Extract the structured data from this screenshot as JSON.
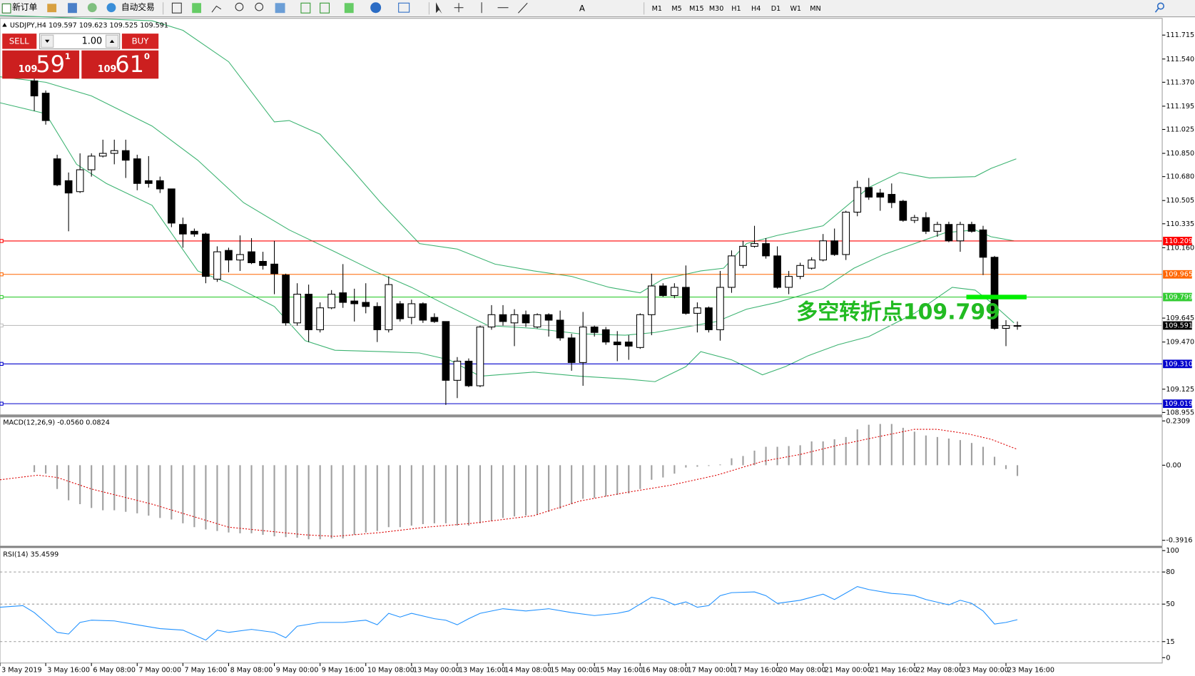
{
  "toolbar": {
    "new_order": "新订单",
    "auto_trading": "自动交易",
    "timeframes": [
      "M1",
      "M5",
      "M15",
      "M30",
      "H1",
      "H4",
      "D1",
      "W1",
      "MN"
    ]
  },
  "trade_panel": {
    "sell": "SELL",
    "lots": "1.00",
    "buy": "BUY",
    "sell_big": "109",
    "sell_pips": "59",
    "sell_frac": "1",
    "buy_big": "109",
    "buy_pips": "61",
    "buy_frac": "0"
  },
  "chart_data": [
    {
      "type": "candlestick",
      "title": "USDJPY,H4  109.597 109.623 109.525 109.591",
      "xlim": [
        -3,
        98.67
      ],
      "ylim": [
        108.938,
        111.832
      ],
      "yticks": [
        111.715,
        {
          "value": 111.54,
          "label": "111.540"
        },
        {
          "value": 111.37,
          "label": "111.370"
        },
        111.195,
        111.025,
        {
          "value": 110.85,
          "label": "110.850"
        },
        {
          "value": 110.68,
          "label": "110.680"
        },
        110.505,
        110.335,
        {
          "value": 110.16,
          "label": "110.160"
        },
        109.645,
        {
          "value": 109.47,
          "label": "109.470"
        },
        109.125,
        108.955
      ],
      "ohlc": [
        [
          111.38,
          111.41,
          111.16,
          111.27
        ],
        [
          111.29,
          111.31,
          111.06,
          111.09
        ],
        [
          110.81,
          110.84,
          110.61,
          110.62
        ],
        [
          110.65,
          110.71,
          110.28,
          110.56
        ],
        [
          110.57,
          110.85,
          110.56,
          110.73
        ],
        [
          110.73,
          110.85,
          110.68,
          110.83
        ],
        [
          110.83,
          110.95,
          110.82,
          110.85
        ],
        [
          110.85,
          110.95,
          110.77,
          110.87
        ],
        [
          110.87,
          110.95,
          110.67,
          110.8
        ],
        [
          110.81,
          110.84,
          110.58,
          110.63
        ],
        [
          110.65,
          110.83,
          110.6,
          110.63
        ],
        [
          110.65,
          110.68,
          110.56,
          110.59
        ],
        [
          110.59,
          110.59,
          110.31,
          110.34
        ],
        [
          110.33,
          110.38,
          110.16,
          110.26
        ],
        [
          110.28,
          110.3,
          110.24,
          110.26
        ],
        [
          110.26,
          110.27,
          109.9,
          109.95
        ],
        [
          109.93,
          110.17,
          109.91,
          110.13
        ],
        [
          110.14,
          110.16,
          109.98,
          110.07
        ],
        [
          110.07,
          110.25,
          109.99,
          110.11
        ],
        [
          110.13,
          110.23,
          110.04,
          110.05
        ],
        [
          110.06,
          110.13,
          110,
          110.03
        ],
        [
          110.04,
          110.21,
          109.82,
          109.97
        ],
        [
          109.96,
          109.97,
          109.59,
          109.61
        ],
        [
          109.61,
          109.9,
          109.59,
          109.82
        ],
        [
          109.82,
          109.89,
          109.47,
          109.56
        ],
        [
          109.56,
          109.76,
          109.54,
          109.72
        ],
        [
          109.72,
          109.85,
          109.71,
          109.82
        ],
        [
          109.83,
          110.04,
          109.72,
          109.76
        ],
        [
          109.77,
          109.86,
          109.62,
          109.75
        ],
        [
          109.76,
          109.9,
          109.68,
          109.73
        ],
        [
          109.73,
          109.76,
          109.47,
          109.56
        ],
        [
          109.56,
          109.95,
          109.54,
          109.89
        ],
        [
          109.75,
          109.77,
          109.62,
          109.64
        ],
        [
          109.65,
          109.78,
          109.6,
          109.75
        ],
        [
          109.75,
          109.76,
          109.61,
          109.63
        ],
        [
          109.65,
          109.68,
          109.61,
          109.62
        ],
        [
          109.62,
          109.62,
          109.01,
          109.19
        ],
        [
          109.19,
          109.36,
          109.06,
          109.33
        ],
        [
          109.33,
          109.35,
          109.14,
          109.15
        ],
        [
          109.15,
          109.59,
          109.14,
          109.58
        ],
        [
          109.58,
          109.74,
          109.56,
          109.67
        ],
        [
          109.67,
          109.74,
          109.59,
          109.62
        ],
        [
          109.61,
          109.71,
          109.44,
          109.67
        ],
        [
          109.67,
          109.7,
          109.58,
          109.61
        ],
        [
          109.58,
          109.68,
          109.57,
          109.67
        ],
        [
          109.67,
          109.68,
          109.51,
          109.63
        ],
        [
          109.63,
          109.7,
          109.48,
          109.5
        ],
        [
          109.5,
          109.53,
          109.26,
          109.32
        ],
        [
          109.32,
          109.69,
          109.15,
          109.58
        ],
        [
          109.58,
          109.59,
          109.51,
          109.54
        ],
        [
          109.56,
          109.58,
          109.45,
          109.47
        ],
        [
          109.47,
          109.55,
          109.33,
          109.45
        ],
        [
          109.47,
          109.52,
          109.34,
          109.44
        ],
        [
          109.43,
          109.68,
          109.42,
          109.67
        ],
        [
          109.67,
          109.97,
          109.52,
          109.88
        ],
        [
          109.88,
          109.9,
          109.8,
          109.81
        ],
        [
          109.81,
          109.9,
          109.79,
          109.87
        ],
        [
          109.87,
          110.03,
          109.67,
          109.68
        ],
        [
          109.68,
          109.76,
          109.54,
          109.72
        ],
        [
          109.72,
          109.73,
          109.54,
          109.56
        ],
        [
          109.56,
          109.99,
          109.48,
          109.87
        ],
        [
          109.87,
          110.14,
          109.83,
          110.1
        ],
        [
          110.03,
          110.21,
          110.01,
          110.17
        ],
        [
          110.17,
          110.32,
          110.16,
          110.19
        ],
        [
          110.19,
          110.23,
          110.08,
          110.1
        ],
        [
          110.1,
          110.17,
          109.86,
          109.87
        ],
        [
          109.87,
          109.99,
          109.82,
          109.95
        ],
        [
          109.95,
          110.05,
          109.93,
          110.03
        ],
        [
          110.01,
          110.09,
          110,
          110.07
        ],
        [
          110.07,
          110.26,
          110.06,
          110.21
        ],
        [
          110.21,
          110.3,
          110.1,
          110.11
        ],
        [
          110.11,
          110.43,
          110.07,
          110.42
        ],
        [
          110.42,
          110.65,
          110.39,
          110.6
        ],
        [
          110.6,
          110.67,
          110.51,
          110.53
        ],
        [
          110.56,
          110.59,
          110.43,
          110.53
        ],
        [
          110.55,
          110.63,
          110.45,
          110.49
        ],
        [
          110.5,
          110.51,
          110.35,
          110.36
        ],
        [
          110.36,
          110.4,
          110.34,
          110.38
        ],
        [
          110.38,
          110.42,
          110.26,
          110.28
        ],
        [
          110.28,
          110.35,
          110.24,
          110.33
        ],
        [
          110.33,
          110.35,
          110.2,
          110.21
        ],
        [
          110.21,
          110.35,
          110.13,
          110.33
        ],
        [
          110.33,
          110.35,
          110.27,
          110.28
        ],
        [
          110.29,
          110.32,
          109.96,
          110.09
        ],
        [
          110.09,
          110.1,
          109.56,
          109.57
        ],
        [
          109.57,
          109.63,
          109.44,
          109.59
        ],
        [
          109.59,
          109.62,
          109.56,
          109.59
        ]
      ],
      "series": [
        {
          "color": "#3cb371",
          "x": [
            -3,
            10.3,
            13,
            17,
            19,
            21,
            22.3,
            25,
            27.7,
            30.3,
            33.7,
            37,
            40.3,
            43.7,
            47,
            50.3,
            53,
            55,
            58.3,
            60.3,
            62.3,
            65,
            69,
            73,
            75.7,
            78.3,
            82.3,
            83.7,
            85.9
          ],
          "values": [
            111.86,
            111.82,
            111.75,
            111.52,
            111.3,
            111.08,
            111.09,
            110.99,
            110.74,
            110.49,
            110.19,
            110.15,
            110.04,
            109.99,
            109.95,
            109.87,
            109.83,
            109.93,
            109.99,
            110.01,
            110.19,
            110.25,
            110.32,
            110.6,
            110.71,
            110.67,
            110.68,
            110.74,
            110.81
          ]
        },
        {
          "color": "#3cb371",
          "x": [
            -3,
            1,
            5,
            10.3,
            14.3,
            18.3,
            22.3,
            26.3,
            29.7,
            33,
            36.3,
            39.7,
            43.7,
            47.7,
            51.7,
            54.3,
            57,
            59.7,
            62.3,
            65,
            69,
            71.7,
            74.3,
            77,
            79.7,
            82.3,
            83.7,
            85.7
          ],
          "values": [
            111.41,
            111.37,
            111.27,
            111.05,
            110.8,
            110.49,
            110.29,
            110.13,
            109.99,
            109.87,
            109.73,
            109.59,
            109.57,
            109.53,
            109.52,
            109.54,
            109.58,
            109.62,
            109.71,
            109.76,
            109.86,
            110.01,
            110.11,
            110.19,
            110.27,
            110.29,
            110.24,
            110.21
          ]
        },
        {
          "color": "#3cb371",
          "x": [
            -3,
            1,
            3.7,
            6.3,
            10.3,
            14.3,
            17,
            21,
            23.7,
            26.3,
            30.3,
            33.7,
            36.3,
            39,
            43.7,
            47.7,
            51.7,
            54.3,
            57,
            58.3,
            61,
            63.7,
            65.7,
            67.7,
            70.3,
            73,
            77,
            80.3,
            82.3,
            83.7,
            85.7
          ],
          "values": [
            111.22,
            111.14,
            110.77,
            110.63,
            110.47,
            109.99,
            109.9,
            109.73,
            109.48,
            109.41,
            109.4,
            109.39,
            109.34,
            109.22,
            109.25,
            109.22,
            109.2,
            109.18,
            109.29,
            109.4,
            109.34,
            109.23,
            109.29,
            109.37,
            109.45,
            109.51,
            109.68,
            109.87,
            109.85,
            109.76,
            109.61
          ]
        }
      ],
      "hlines": [
        {
          "value": 110.209,
          "color": "#ff0000"
        },
        {
          "value": 109.965,
          "color": "#ff6600"
        },
        {
          "value": 109.799,
          "color": "#33cc33"
        },
        {
          "value": 109.591,
          "color": "#c0c0c0",
          "label_color": "#000000"
        },
        {
          "value": 109.31,
          "label": "109.310",
          "color": "#0000cc"
        },
        {
          "value": 109.019,
          "color": "#0000cc"
        }
      ],
      "marker_color": "#00ee00",
      "annotation": "多空转折点109.799",
      "annotation_color": "#22bb22",
      "x_labels": [
        "3 May 2019",
        "3 May 16:00",
        "6 May 08:00",
        "7 May 00:00",
        "7 May 16:00",
        "8 May 08:00",
        "9 May 00:00",
        "9 May 16:00",
        "10 May 08:00",
        "13 May 00:00",
        "13 May 16:00",
        "14 May 08:00",
        "15 May 00:00",
        "15 May 16:00",
        "16 May 08:00",
        "17 May 00:00",
        "17 May 16:00",
        "20 May 08:00",
        "21 May 00:00",
        "21 May 16:00",
        "22 May 08:00",
        "23 May 00:00",
        "23 May 16:00"
      ]
    },
    {
      "type": "macd",
      "title": "MACD(12,26,9) -0.0560 0.0824",
      "xlim": [
        -3,
        98.67
      ],
      "ylim": [
        -0.422,
        0.251
      ],
      "yticks": [
        0.2309,
        {
          "value": 0,
          "label": "0.00"
        },
        -0.3916
      ],
      "color": "#a0a0a0",
      "values": [
        -0.036,
        -0.044,
        -0.124,
        -0.183,
        -0.203,
        -0.223,
        -0.235,
        -0.235,
        -0.243,
        -0.251,
        -0.263,
        -0.275,
        -0.283,
        -0.303,
        -0.323,
        -0.335,
        -0.343,
        -0.351,
        -0.355,
        -0.355,
        -0.363,
        -0.371,
        -0.375,
        -0.378,
        -0.386,
        -0.386,
        -0.382,
        -0.382,
        -0.363,
        -0.351,
        -0.343,
        -0.323,
        -0.323,
        -0.315,
        -0.307,
        -0.303,
        -0.303,
        -0.315,
        -0.315,
        -0.303,
        -0.291,
        -0.275,
        -0.267,
        -0.263,
        -0.259,
        -0.243,
        -0.227,
        -0.203,
        -0.175,
        -0.171,
        -0.163,
        -0.155,
        -0.147,
        -0.124,
        -0.076,
        -0.064,
        -0.044,
        -0.012,
        -0.008,
        -0.004,
        0.004,
        0.036,
        0.048,
        0.076,
        0.096,
        0.096,
        0.1,
        0.104,
        0.124,
        0.124,
        0.135,
        0.147,
        0.187,
        0.211,
        0.215,
        0.215,
        0.195,
        0.175,
        0.155,
        0.147,
        0.139,
        0.131,
        0.116,
        0.096,
        0.044,
        -0.02,
        -0.056
      ],
      "signal": {
        "color": "#dd0000",
        "x": [
          -3,
          0.3,
          2,
          5,
          10.3,
          17,
          23.7,
          26.3,
          30.3,
          34.3,
          38.3,
          43.7,
          47.7,
          51.7,
          55.7,
          59.7,
          63.7,
          67,
          70.3,
          73.7,
          77,
          79,
          81.7,
          83.7,
          86
        ],
        "values": [
          -0.076,
          -0.052,
          -0.064,
          -0.124,
          -0.203,
          -0.323,
          -0.363,
          -0.371,
          -0.351,
          -0.323,
          -0.303,
          -0.263,
          -0.187,
          -0.143,
          -0.104,
          -0.052,
          0.02,
          0.056,
          0.104,
          0.147,
          0.187,
          0.187,
          0.163,
          0.135,
          0.0824
        ]
      }
    },
    {
      "type": "line",
      "title": "RSI(14) 35.4599",
      "xlim": [
        -3,
        98.67
      ],
      "ylim": [
        -5,
        102
      ],
      "yticks": [
        100,
        80,
        50,
        15,
        0
      ],
      "levels": [
        80,
        50,
        15
      ],
      "series": [
        {
          "color": "#1e90ff",
          "x": [
            -3,
            -1,
            0,
            1,
            2,
            3,
            4,
            5,
            7,
            9,
            11,
            13,
            15,
            16,
            17,
            19,
            21,
            22,
            23,
            25,
            27,
            29,
            30,
            31,
            32,
            33,
            35,
            36,
            37,
            38,
            39,
            41,
            43,
            45,
            47,
            49,
            51,
            52,
            54,
            55,
            56,
            57,
            58,
            59,
            60,
            61,
            63,
            64,
            65,
            67,
            69,
            70,
            72,
            73,
            75,
            76,
            77,
            78,
            80,
            81,
            82,
            83,
            84,
            85,
            86
          ],
          "values": [
            47.1,
            48.6,
            42.1,
            32.9,
            23.6,
            22.1,
            32.9,
            35,
            34.3,
            30.7,
            27.1,
            25.7,
            16.4,
            25.7,
            23.6,
            26.4,
            23.6,
            18.6,
            29.3,
            32.9,
            32.9,
            35,
            30.7,
            41.4,
            37.9,
            41.4,
            36.4,
            35,
            30.7,
            36.4,
            41.4,
            45.7,
            43.6,
            45.7,
            42.1,
            39.3,
            41.4,
            43.6,
            56.4,
            54.3,
            49.3,
            52.1,
            47.1,
            48.6,
            57.9,
            60.7,
            61.4,
            57.9,
            50.7,
            53.6,
            59.3,
            54.3,
            66.4,
            63.6,
            60,
            59.3,
            57.9,
            54.3,
            49.3,
            53.6,
            50.7,
            43.6,
            31.4,
            32.9,
            35.4599
          ]
        }
      ]
    }
  ]
}
